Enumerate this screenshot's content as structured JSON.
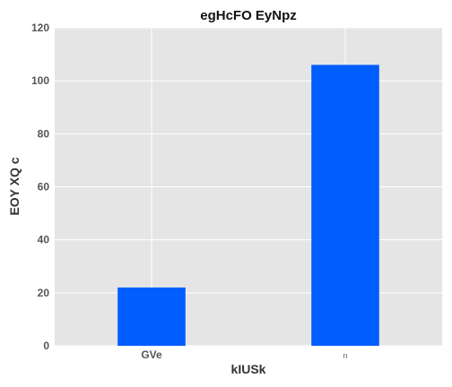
{
  "chart_data": {
    "type": "bar",
    "title": "egHcFO EyNpz",
    "xlabel": "kIUSk",
    "ylabel": "EOY XQ c",
    "categories": [
      "GVe",
      "n"
    ],
    "values": [
      22,
      106
    ],
    "ylim": [
      0,
      120
    ],
    "yticks": [
      "0",
      "20",
      "40",
      "60",
      "80",
      "100",
      "120"
    ],
    "bar_color": "#005eff",
    "plot_background": "#e5e5e5",
    "grid": true,
    "legend": false
  }
}
